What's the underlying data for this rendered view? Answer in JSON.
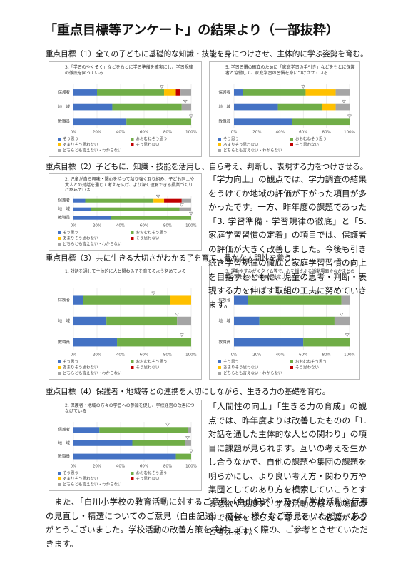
{
  "title": "「重点目標等アンケート」の結果より（一部抜粋）",
  "sections": [
    {
      "heading": "重点目標（1）全ての子どもに基礎的な知識・技能を身につけさせ、主体的に学ぶ姿勢を育む。"
    },
    {
      "heading": "重点目標（2）子どもに、知識・技能を活用し、自ら考え、判断し、表現する力をつけさせる。"
    },
    {
      "heading": "重点目標（3）共に生きる大切さがわかる子を育て、豊かな人間性を養う。"
    },
    {
      "heading": "重点目標（4）保護者・地域等との連携を大切にしながら、生きる力の基礎を育む。"
    }
  ],
  "paragraphs": [
    "「学力向上」の観点では、学力調査の結果をうけてか地域の評価が下がった項目が多かったです。一方、昨年度の課題であった「3. 学習準備・学習規律の徹底」と「5. 家庭学習習慣の定着」の項目では、保護者の評価が大きく改善しました。今後も引き続き学習規律の徹底と家庭学習習慣の向上を目指すとともに、児童の思考・判断・表現する力を伸ばす取組の工夫に努めていきます。",
    "「人間性の向上」「生きる力の育成」の観点では、昨年度よりは改善したものの「1. 対話を通した主体的な人との関わり」の項目に課題が見られます。互いの考えを生かし合うなかで、自他の課題や集団の課題を明らかにし、より良い考え方・関わり方や集団としてのあり方を模索していこうとする意欲や態度を、学校活動の様々な場面の中で機会をとらえて育てていく必要があると考えます。",
    "また、「白川小学校の教育活動に対するご意見（自由記述）」及び「学校活動や行事の見直し・精選についてのご意見（自由記述）」では、様々なご意見をいただき、ありがとうございました。学校活動の改善方策を検討していく際の、ご参考とさせていただきます。"
  ],
  "chart_data": [
    {
      "type": "stacked-barh",
      "title": "3.「学習のやくそく」などをもとに学習準備を確実にし、学習規律の徹底を図っている",
      "categories": [
        "保護者",
        "地　域",
        "教職員"
      ],
      "series": [
        {
          "name": "そう思う",
          "color": "#4472c4",
          "values": [
            20,
            33,
            45
          ]
        },
        {
          "name": "おおむねそう思う",
          "color": "#70ad47",
          "values": [
            57,
            59,
            55
          ]
        },
        {
          "name": "あまりそう思わない",
          "color": "#ffc000",
          "values": [
            10,
            0,
            0
          ]
        },
        {
          "name": "そう思わない",
          "color": "#c00000",
          "values": [
            4,
            0,
            0
          ]
        },
        {
          "name": "どちらとも言えない・わからない",
          "color": "#a5a5a5",
          "values": [
            9,
            8,
            0
          ]
        }
      ],
      "markers": [
        75,
        95,
        100
      ],
      "xlim": [
        0,
        100
      ],
      "xticks": [
        {
          "value": 0,
          "label": "0%"
        },
        {
          "value": 20,
          "label": "20%"
        },
        {
          "value": 40,
          "label": "40%"
        },
        {
          "value": 60,
          "label": "60%"
        },
        {
          "value": 80,
          "label": "80%"
        },
        {
          "value": 100,
          "label": "100%"
        }
      ]
    },
    {
      "type": "stacked-barh",
      "title": "5. 学習習慣の確立のために「家庭学習の手引き」などをもとに保護者と協働して、家庭学習の習慣を身につけさせている",
      "categories": [
        "保護者",
        "地　域",
        "教職員"
      ],
      "series": [
        {
          "name": "そう思う",
          "color": "#4472c4",
          "values": [
            8,
            38,
            50
          ]
        },
        {
          "name": "おおむねそう思う",
          "color": "#70ad47",
          "values": [
            54,
            38,
            50
          ]
        },
        {
          "name": "あまりそう思わない",
          "color": "#ffc000",
          "values": [
            26,
            12,
            0
          ]
        },
        {
          "name": "そう思わない",
          "color": "#c00000",
          "values": [
            0,
            0,
            0
          ]
        },
        {
          "name": "どちらとも言えない・わからない",
          "color": "#a5a5a5",
          "values": [
            12,
            12,
            0
          ]
        }
      ],
      "markers": [
        60,
        95,
        100
      ],
      "xlim": [
        0,
        100
      ],
      "xticks": [
        {
          "value": 0,
          "label": "0%"
        },
        {
          "value": 20,
          "label": "20%"
        },
        {
          "value": 40,
          "label": "40%"
        },
        {
          "value": 60,
          "label": "60%"
        },
        {
          "value": 80,
          "label": "80%"
        },
        {
          "value": 100,
          "label": "100%"
        }
      ]
    },
    {
      "type": "stacked-barh",
      "title": "2. 児童が自ら興味・関心を持って粘り強く取り組み、子ども同士や大人との対話を通じて考えを広げ、より深く理解できる授業づくりに努めている",
      "categories": [
        "保護者",
        "地　域",
        "教職員"
      ],
      "series": [
        {
          "name": "そう思う",
          "color": "#4472c4",
          "values": [
            10,
            15,
            32
          ]
        },
        {
          "name": "おおむねそう思う",
          "color": "#70ad47",
          "values": [
            58,
            75,
            68
          ]
        },
        {
          "name": "あまりそう思わない",
          "color": "#ffc000",
          "values": [
            9,
            0,
            0
          ]
        },
        {
          "name": "そう思わない",
          "color": "#c00000",
          "values": [
            15,
            0,
            0
          ]
        },
        {
          "name": "どちらとも言えない・わからない",
          "color": "#a5a5a5",
          "values": [
            8,
            10,
            0
          ]
        }
      ],
      "markers": [
        72,
        92,
        100
      ],
      "xlim": [
        0,
        100
      ],
      "xticks": [
        {
          "value": 0,
          "label": "0%"
        },
        {
          "value": 20,
          "label": "20%"
        },
        {
          "value": 40,
          "label": "40%"
        },
        {
          "value": 60,
          "label": "60%"
        },
        {
          "value": 80,
          "label": "80%"
        },
        {
          "value": 100,
          "label": "100%"
        }
      ]
    },
    {
      "type": "stacked-barh",
      "title": "1. 対話を通して主体的に人と関わる子を育てるよう努めている",
      "categories": [
        "保護者",
        "地　域",
        "教職員"
      ],
      "series": [
        {
          "name": "そう思う",
          "color": "#4472c4",
          "values": [
            8,
            28,
            37
          ]
        },
        {
          "name": "おおむねそう思う",
          "color": "#70ad47",
          "values": [
            74,
            60,
            63
          ]
        },
        {
          "name": "あまりそう思わない",
          "color": "#ffc000",
          "values": [
            18,
            0,
            0
          ]
        },
        {
          "name": "そう思わない",
          "color": "#c00000",
          "values": [
            0,
            0,
            0
          ]
        },
        {
          "name": "どちらとも言えない・わからない",
          "color": "#a5a5a5",
          "values": [
            0,
            12,
            0
          ]
        }
      ],
      "markers": [
        68,
        88,
        92
      ],
      "xlim": [
        0,
        100
      ],
      "xticks": [
        {
          "value": 0,
          "label": "0%"
        },
        {
          "value": 20,
          "label": "20%"
        },
        {
          "value": 40,
          "label": "40%"
        },
        {
          "value": 60,
          "label": "60%"
        },
        {
          "value": 80,
          "label": "80%"
        },
        {
          "value": 100,
          "label": "100%"
        }
      ]
    },
    {
      "type": "stacked-barh",
      "title": "3. 運動やすみがくタイム等で、心を揺さぶる活動場面やなかまとの関わりを高め合う場面を設定している",
      "categories": [
        "保護者",
        "地　域",
        "教職員"
      ],
      "series": [
        {
          "name": "そう思う",
          "color": "#4472c4",
          "values": [
            12,
            22,
            60
          ]
        },
        {
          "name": "おおむねそう思う",
          "color": "#70ad47",
          "values": [
            81,
            65,
            40
          ]
        },
        {
          "name": "あまりそう思わない",
          "color": "#ffc000",
          "values": [
            0,
            0,
            0
          ]
        },
        {
          "name": "そう思わない",
          "color": "#c00000",
          "values": [
            0,
            0,
            0
          ]
        },
        {
          "name": "どちらとも言えない・わからない",
          "color": "#a5a5a5",
          "values": [
            7,
            13,
            0
          ]
        }
      ],
      "markers": [
        72,
        93,
        98
      ],
      "xlim": [
        0,
        100
      ],
      "xticks": [
        {
          "value": 0,
          "label": "0%"
        },
        {
          "value": 20,
          "label": "20%"
        },
        {
          "value": 40,
          "label": "40%"
        },
        {
          "value": 60,
          "label": "60%"
        },
        {
          "value": 80,
          "label": "80%"
        },
        {
          "value": 100,
          "label": "100%"
        }
      ]
    },
    {
      "type": "stacked-barh",
      "title": "2. 保護者・地域の方々の学習への参加を促し、学校経営の改善につなげている",
      "categories": [
        "保護者",
        "地　域",
        "教職員"
      ],
      "series": [
        {
          "name": "そう思う",
          "color": "#4472c4",
          "values": [
            22,
            50,
            87
          ]
        },
        {
          "name": "おおむねそう思う",
          "color": "#70ad47",
          "values": [
            75,
            45,
            13
          ]
        },
        {
          "name": "あまりそう思わない",
          "color": "#ffc000",
          "values": [
            0,
            0,
            0
          ]
        },
        {
          "name": "そう思わない",
          "color": "#c00000",
          "values": [
            0,
            0,
            0
          ]
        },
        {
          "name": "どちらとも言えない・わからない",
          "color": "#a5a5a5",
          "values": [
            3,
            5,
            0
          ]
        }
      ],
      "markers": [
        80,
        97,
        100
      ],
      "xlim": [
        0,
        100
      ],
      "xticks": [
        {
          "value": 0,
          "label": "0%"
        },
        {
          "value": 20,
          "label": "20%"
        },
        {
          "value": 40,
          "label": "40%"
        },
        {
          "value": 60,
          "label": "60%"
        },
        {
          "value": 80,
          "label": "80%"
        },
        {
          "value": 100,
          "label": "100%"
        }
      ]
    }
  ]
}
